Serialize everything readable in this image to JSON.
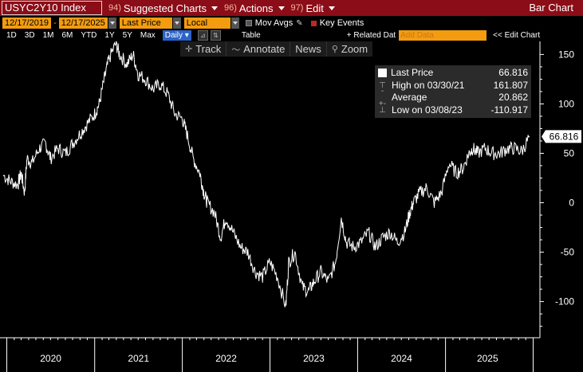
{
  "titlebar": {
    "ticker": "USYC2Y10 Index",
    "menus": [
      {
        "num": "94)",
        "label": "Suggested Charts"
      },
      {
        "num": "96)",
        "label": "Actions"
      },
      {
        "num": "97)",
        "label": "Edit"
      }
    ],
    "bar_chart_label": "Bar Chart"
  },
  "row2": {
    "start_date": "12/17/2019",
    "end_date": "12/17/2025",
    "separator": "-",
    "price_field": "Last Price",
    "currency_field": "Local CCY",
    "mov_avgs": "Mov Avgs",
    "key_events": "Key Events"
  },
  "row3": {
    "ranges": [
      "1D",
      "3D",
      "1M",
      "6M",
      "YTD",
      "1Y",
      "5Y",
      "Max"
    ],
    "frequency": "Daily",
    "table_label": "Table",
    "related_data": "+ Related Dat",
    "add_data_placeholder": "Add Data",
    "edit_chart": "Edit Chart"
  },
  "toolbar": {
    "items": [
      {
        "icon": "track-icon",
        "label": "Track"
      },
      {
        "icon": "annotate-icon",
        "label": "Annotate"
      },
      {
        "icon": "news-icon",
        "label": "News"
      },
      {
        "icon": "zoom-icon",
        "label": "Zoom"
      }
    ]
  },
  "legend": {
    "last_price_label": "Last Price",
    "last_price_value": "66.816",
    "high_label": "High on 03/30/21",
    "high_value": "161.807",
    "average_label": "Average",
    "average_value": "20.862",
    "low_label": "Low on 03/08/23",
    "low_value": "-110.917"
  },
  "colors": {
    "title_bar": "#8b0d17",
    "field_orange": "#f39c0f",
    "daily_blue": "#2b63c8",
    "line": "#ffffff",
    "background": "#000000"
  },
  "chart_data": {
    "type": "line",
    "title": "USYC2Y10 Index",
    "xlabel": "",
    "ylabel": "",
    "x_ticks": [
      "2020",
      "2021",
      "2022",
      "2023",
      "2024",
      "2025"
    ],
    "y_ticks": [
      150,
      100,
      50,
      0,
      -50,
      -100
    ],
    "ylim": [
      -135,
      160
    ],
    "xlim": [
      "2019-12-17",
      "2025-12-17"
    ],
    "last_value_label": "66.816",
    "series": [
      {
        "name": "Last Price",
        "x": [
          "2019-12-17",
          "2020-01-15",
          "2020-02-15",
          "2020-03-01",
          "2020-03-15",
          "2020-03-25",
          "2020-04-15",
          "2020-05-15",
          "2020-06-10",
          "2020-07-01",
          "2020-08-01",
          "2020-09-01",
          "2020-10-01",
          "2020-11-01",
          "2020-12-01",
          "2021-01-01",
          "2021-01-20",
          "2021-02-10",
          "2021-03-01",
          "2021-03-30",
          "2021-04-15",
          "2021-05-15",
          "2021-06-10",
          "2021-07-01",
          "2021-08-01",
          "2021-09-01",
          "2021-10-01",
          "2021-11-01",
          "2021-12-01",
          "2022-01-01",
          "2022-01-20",
          "2022-02-15",
          "2022-03-15",
          "2022-04-01",
          "2022-04-15",
          "2022-05-15",
          "2022-06-10",
          "2022-07-01",
          "2022-08-01",
          "2022-09-01",
          "2022-10-01",
          "2022-11-01",
          "2022-12-01",
          "2023-01-01",
          "2023-02-01",
          "2023-03-08",
          "2023-03-20",
          "2023-04-15",
          "2023-05-15",
          "2023-06-10",
          "2023-07-03",
          "2023-08-01",
          "2023-09-01",
          "2023-10-01",
          "2023-10-25",
          "2023-11-15",
          "2023-12-15",
          "2024-01-15",
          "2024-02-15",
          "2024-03-15",
          "2024-04-15",
          "2024-05-15",
          "2024-06-15",
          "2024-07-15",
          "2024-08-05",
          "2024-08-20",
          "2024-09-15",
          "2024-10-15",
          "2024-11-15",
          "2024-12-15",
          "2025-01-15",
          "2025-02-15",
          "2025-03-15",
          "2025-04-08",
          "2025-04-25",
          "2025-05-15",
          "2025-06-15",
          "2025-07-15",
          "2025-08-15",
          "2025-09-15",
          "2025-10-15",
          "2025-11-15",
          "2025-12-17"
        ],
        "values": [
          28,
          22,
          18,
          30,
          10,
          45,
          40,
          55,
          60,
          45,
          55,
          50,
          60,
          70,
          80,
          90,
          100,
          125,
          145,
          161,
          150,
          140,
          150,
          130,
          125,
          115,
          120,
          110,
          90,
          85,
          70,
          45,
          30,
          10,
          0,
          -10,
          -35,
          -15,
          -30,
          -45,
          -50,
          -70,
          -75,
          -60,
          -75,
          -105,
          -60,
          -50,
          -85,
          -90,
          -80,
          -70,
          -80,
          -60,
          -15,
          -40,
          -45,
          -40,
          -30,
          -45,
          -35,
          -30,
          -40,
          -30,
          -10,
          0,
          10,
          15,
          0,
          10,
          40,
          30,
          35,
          50,
          55,
          50,
          55,
          50,
          50,
          55,
          55,
          52,
          67
        ]
      }
    ]
  }
}
